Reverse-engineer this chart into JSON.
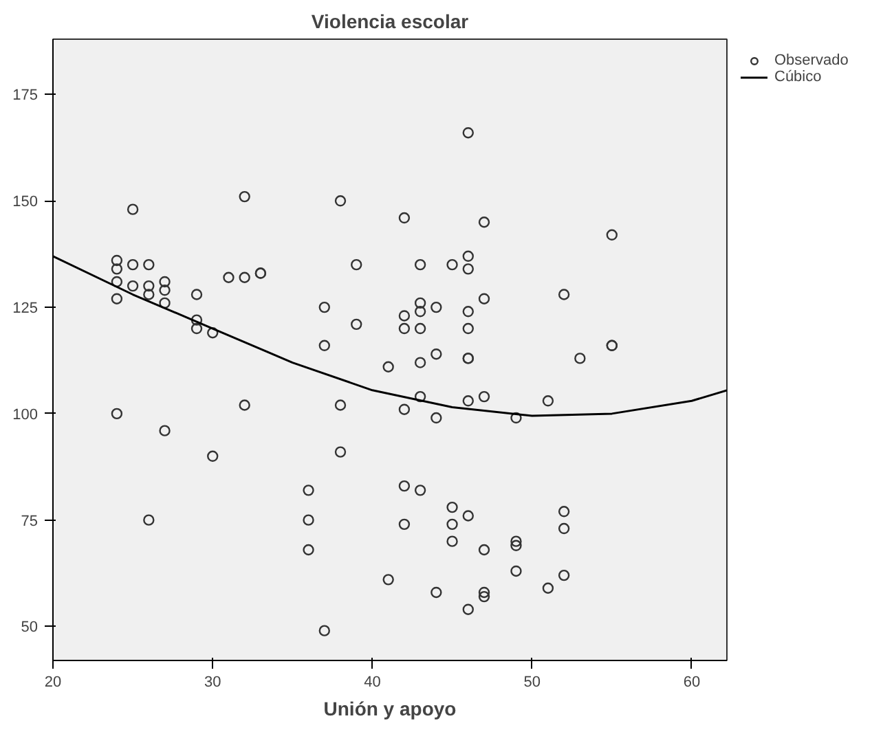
{
  "chart_data": {
    "type": "scatter",
    "title": "Violencia escolar",
    "xlabel": "Unión y apoyo",
    "xlim": [
      20,
      62.2
    ],
    "xticks": [
      20,
      30,
      40,
      50,
      60
    ],
    "ylim": [
      42,
      188
    ],
    "yticks": [
      50,
      75,
      100,
      125,
      150,
      175
    ],
    "grid": false,
    "legend": "top right",
    "series": [
      {
        "name": "Observado",
        "color": "#333333",
        "marker": "circle",
        "x": [
          24,
          24,
          24,
          24,
          24,
          25,
          25,
          25,
          26,
          26,
          26,
          26,
          27,
          27,
          27,
          27,
          29,
          29,
          29,
          30,
          30,
          31,
          32,
          32,
          32,
          33,
          33,
          36,
          36,
          36,
          37,
          37,
          37,
          38,
          38,
          38,
          39,
          39,
          41,
          41,
          42,
          42,
          42,
          42,
          42,
          42,
          43,
          43,
          43,
          43,
          43,
          43,
          43,
          44,
          44,
          44,
          44,
          45,
          45,
          45,
          45,
          46,
          46,
          46,
          46,
          46,
          46,
          46,
          46,
          46,
          46,
          47,
          47,
          47,
          47,
          47,
          47,
          49,
          49,
          49,
          49,
          51,
          51,
          52,
          52,
          52,
          52,
          53,
          55,
          55,
          55
        ],
        "values": [
          136,
          134,
          131,
          127,
          100,
          148,
          135,
          130,
          135,
          130,
          128,
          75,
          131,
          129,
          126,
          96,
          128,
          122,
          120,
          119,
          90,
          132,
          151,
          132,
          102,
          133,
          133,
          82,
          75,
          68,
          125,
          116,
          49,
          150,
          102,
          91,
          135,
          121,
          111,
          61,
          146,
          123,
          120,
          101,
          83,
          74,
          135,
          126,
          124,
          120,
          112,
          104,
          82,
          125,
          114,
          99,
          58,
          135,
          78,
          74,
          70,
          166,
          137,
          134,
          124,
          120,
          113,
          113,
          103,
          76,
          54,
          145,
          127,
          104,
          68,
          58,
          57,
          99,
          70,
          69,
          63,
          103,
          59,
          128,
          77,
          73,
          62,
          113,
          142,
          116,
          116
        ]
      },
      {
        "name": "Cúbico",
        "type": "line",
        "color": "#000000",
        "line_style": "solid",
        "x": [
          20,
          25,
          30,
          35,
          40,
          45,
          50,
          55,
          60,
          62.2
        ],
        "values": [
          137,
          128,
          120,
          112,
          105.5,
          101.5,
          99.5,
          100,
          103,
          105.5
        ]
      }
    ]
  }
}
